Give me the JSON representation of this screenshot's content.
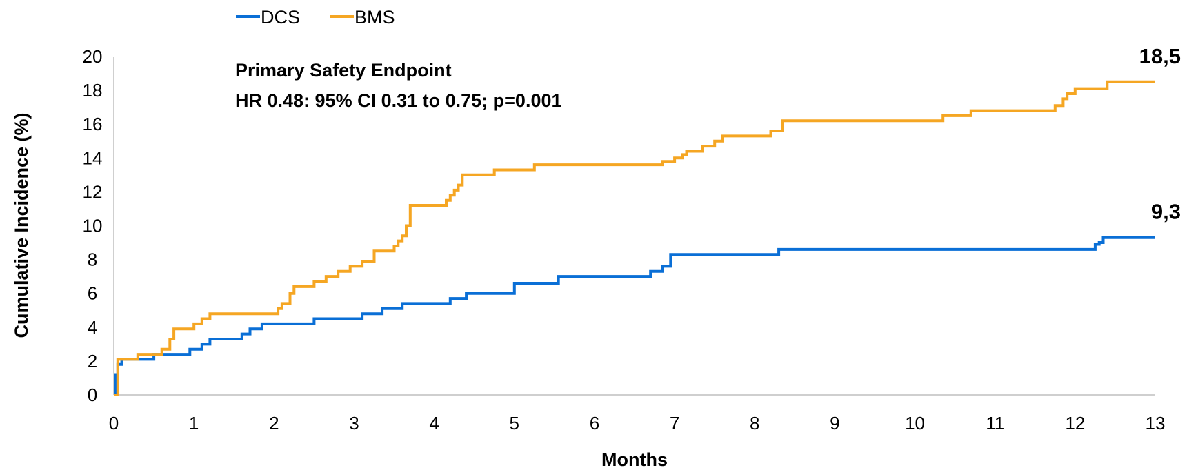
{
  "chart_data": {
    "type": "line",
    "title": "",
    "annotations": [
      "Primary Safety Endpoint",
      "HR 0.48: 95% CI 0.31 to 0.75; p=0.001"
    ],
    "xlabel": "Months",
    "ylabel": "Cumulative Incidence (%)",
    "xlim": [
      0,
      13
    ],
    "ylim": [
      0,
      20
    ],
    "xticks": [
      0,
      1,
      2,
      3,
      4,
      5,
      6,
      7,
      8,
      9,
      10,
      11,
      12,
      13
    ],
    "yticks": [
      0,
      2,
      4,
      6,
      8,
      10,
      12,
      14,
      16,
      18,
      20
    ],
    "step": true,
    "grid": false,
    "legend_position": "top-left",
    "series": [
      {
        "name": "DCS",
        "color": "#0a6fd6",
        "end_label": "9,3",
        "x": [
          0,
          0.02,
          0.05,
          0.1,
          0.5,
          0.95,
          1.1,
          1.2,
          1.6,
          1.7,
          1.85,
          2.5,
          3.1,
          3.35,
          3.6,
          4.2,
          4.4,
          5.0,
          5.55,
          6.7,
          6.85,
          6.95,
          8.3,
          12.25,
          12.3,
          12.35,
          13.0
        ],
        "y": [
          0,
          1.2,
          1.8,
          2.1,
          2.4,
          2.7,
          3.0,
          3.3,
          3.6,
          3.9,
          4.2,
          4.5,
          4.8,
          5.1,
          5.4,
          5.7,
          6.0,
          6.6,
          7.0,
          7.3,
          7.6,
          8.3,
          8.6,
          8.9,
          9.0,
          9.3,
          9.3
        ]
      },
      {
        "name": "BMS",
        "color": "#f5a623",
        "end_label": "18,5",
        "x": [
          0,
          0.05,
          0.3,
          0.6,
          0.7,
          0.75,
          1.0,
          1.1,
          1.2,
          2.05,
          2.1,
          2.2,
          2.25,
          2.5,
          2.65,
          2.8,
          2.95,
          3.1,
          3.25,
          3.5,
          3.55,
          3.6,
          3.65,
          3.7,
          4.15,
          4.2,
          4.25,
          4.3,
          4.35,
          4.75,
          5.25,
          6.85,
          7.0,
          7.1,
          7.15,
          7.35,
          7.5,
          7.6,
          8.1,
          8.2,
          8.35,
          10.35,
          10.7,
          11.75,
          11.85,
          11.9,
          12.0,
          12.4,
          13.0
        ],
        "y": [
          0,
          2.1,
          2.4,
          2.7,
          3.3,
          3.9,
          4.2,
          4.5,
          4.8,
          5.1,
          5.4,
          6.0,
          6.4,
          6.7,
          7.0,
          7.3,
          7.6,
          7.9,
          8.5,
          8.8,
          9.1,
          9.4,
          10.0,
          11.2,
          11.5,
          11.8,
          12.1,
          12.4,
          13.0,
          13.3,
          13.6,
          13.8,
          14.0,
          14.2,
          14.4,
          14.7,
          15.0,
          15.3,
          15.3,
          15.6,
          16.2,
          16.5,
          16.8,
          17.1,
          17.5,
          17.8,
          18.1,
          18.5,
          18.5
        ]
      }
    ]
  }
}
